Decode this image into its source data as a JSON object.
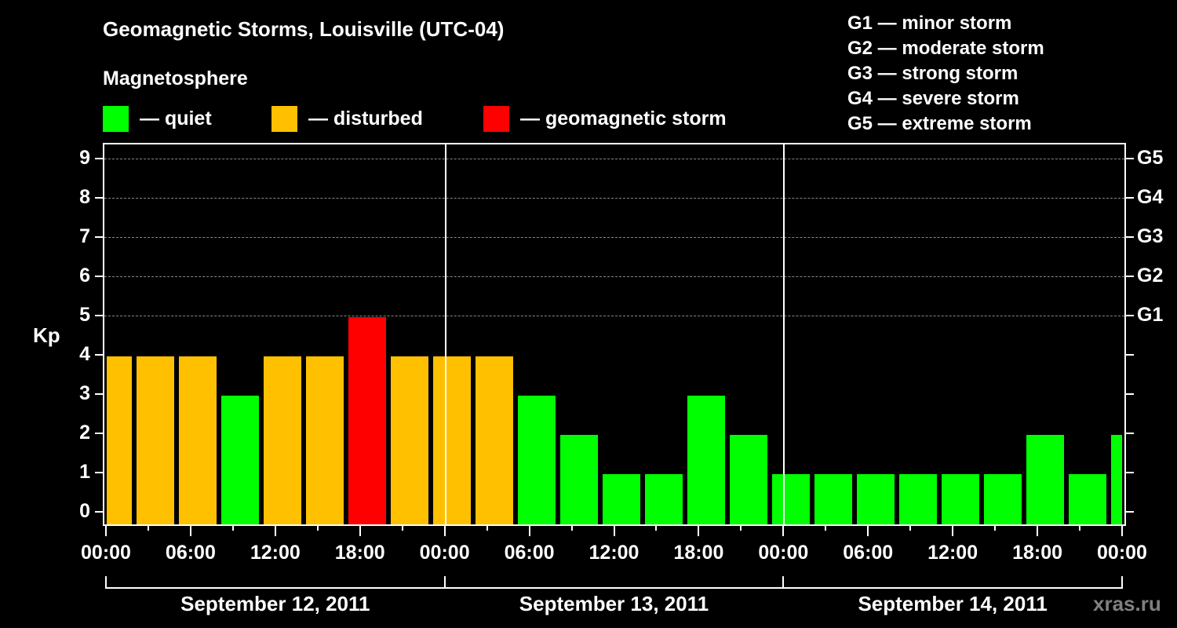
{
  "header": {
    "title": "Geomagnetic Storms, Louisville (UTC-04)",
    "subtitle": "Magnetosphere"
  },
  "legend": [
    {
      "label": "— quiet",
      "color": "#00ff00"
    },
    {
      "label": "— disturbed",
      "color": "#ffc000"
    },
    {
      "label": "— geomagnetic storm",
      "color": "#ff0000"
    }
  ],
  "storm_scale": [
    "G1 — minor storm",
    "G2 — moderate storm",
    "G3 — strong storm",
    "G4 — severe storm",
    "G5 — extreme storm"
  ],
  "watermark": "xras.ru",
  "chart_data": {
    "type": "bar",
    "title": "Geomagnetic Storms, Louisville (UTC-04)",
    "subtitle": "Magnetosphere",
    "xlabel": "",
    "ylabel": "Kp",
    "ylim": [
      0,
      9
    ],
    "y_ticks": [
      "0",
      "1",
      "2",
      "3",
      "4",
      "5",
      "6",
      "7",
      "8",
      "9"
    ],
    "right_axis_ticks": [
      {
        "kp": 5,
        "label": "G1"
      },
      {
        "kp": 6,
        "label": "G2"
      },
      {
        "kp": 7,
        "label": "G3"
      },
      {
        "kp": 8,
        "label": "G4"
      },
      {
        "kp": 9,
        "label": "G5"
      }
    ],
    "grid": "dashed horizontal at Kp 5-9",
    "x_tick_labels": [
      "00:00",
      "06:00",
      "12:00",
      "18:00",
      "00:00",
      "06:00",
      "12:00",
      "18:00",
      "00:00",
      "06:00",
      "12:00",
      "18:00",
      "00:00"
    ],
    "day_labels": [
      "September 12, 2011",
      "September 13, 2011",
      "September 14, 2011"
    ],
    "interval_hours": 3,
    "categories": [
      "Sep 12 00:00",
      "Sep 12 03:00",
      "Sep 12 06:00",
      "Sep 12 09:00",
      "Sep 12 12:00",
      "Sep 12 15:00",
      "Sep 12 18:00",
      "Sep 12 21:00",
      "Sep 13 00:00",
      "Sep 13 03:00",
      "Sep 13 06:00",
      "Sep 13 09:00",
      "Sep 13 12:00",
      "Sep 13 15:00",
      "Sep 13 18:00",
      "Sep 13 21:00",
      "Sep 14 00:00",
      "Sep 14 03:00",
      "Sep 14 06:00",
      "Sep 14 09:00",
      "Sep 14 12:00",
      "Sep 14 15:00",
      "Sep 14 18:00",
      "Sep 14 21:00",
      "Sep 15 00:00"
    ],
    "values": [
      4,
      4,
      4,
      3,
      4,
      4,
      5,
      4,
      4,
      4,
      3,
      2,
      1,
      1,
      3,
      2,
      1,
      1,
      1,
      1,
      1,
      1,
      2,
      1,
      2
    ],
    "status": [
      "disturbed",
      "disturbed",
      "disturbed",
      "quiet",
      "disturbed",
      "disturbed",
      "storm",
      "disturbed",
      "disturbed",
      "disturbed",
      "quiet",
      "quiet",
      "quiet",
      "quiet",
      "quiet",
      "quiet",
      "quiet",
      "quiet",
      "quiet",
      "quiet",
      "quiet",
      "quiet",
      "quiet",
      "quiet",
      "quiet"
    ],
    "colors": {
      "quiet": "#00ff00",
      "disturbed": "#ffc000",
      "storm": "#ff0000"
    }
  }
}
